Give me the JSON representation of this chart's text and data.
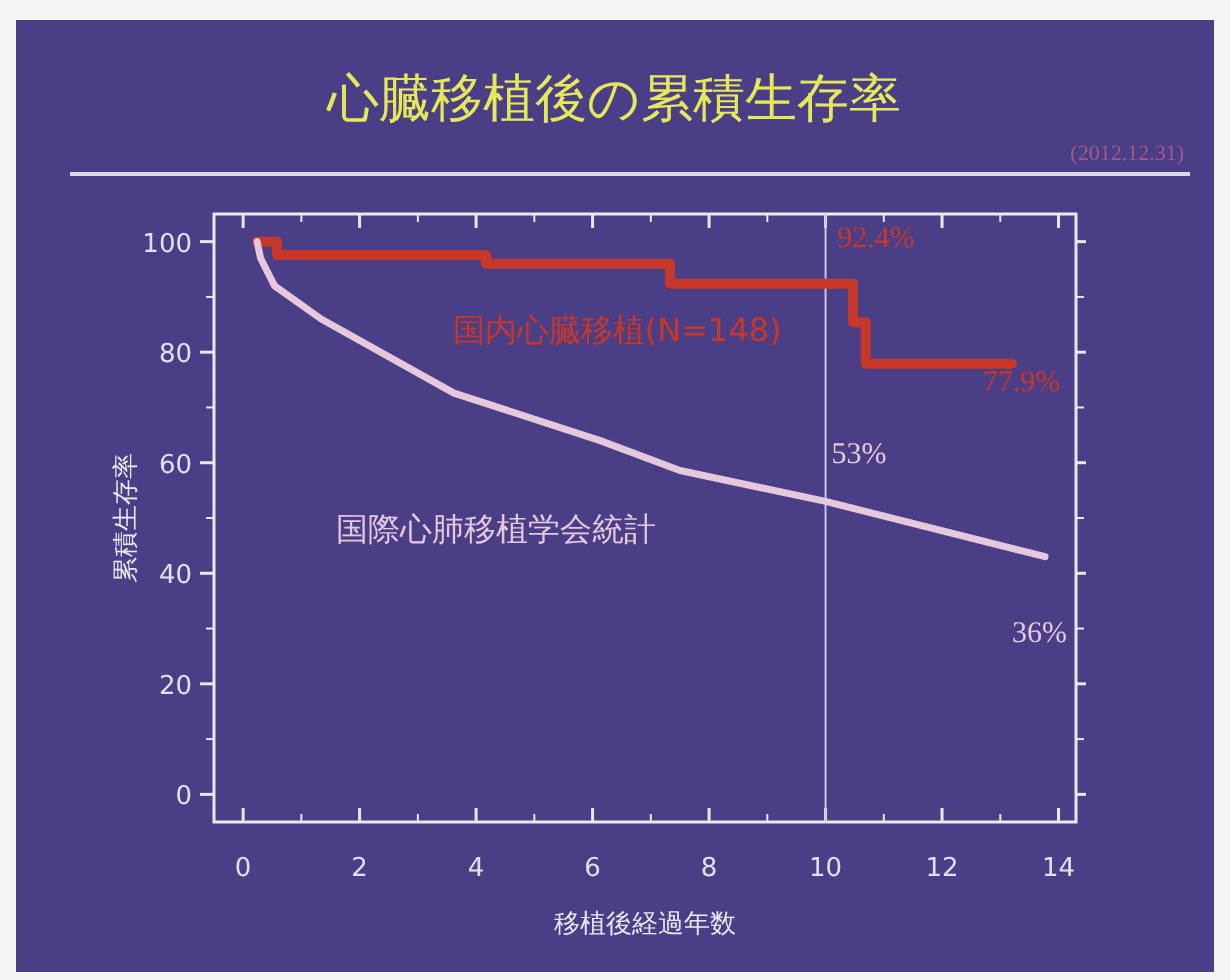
{
  "chart_data": {
    "type": "line",
    "title": "心臓移植後の累積生存率",
    "subtitle": "(2012.12.31)",
    "xlabel": "移植後経過年数",
    "ylabel": "累積生存率",
    "xlim": [
      -0.5,
      14.3
    ],
    "ylim": [
      -5,
      105
    ],
    "xticks": [
      0,
      2,
      4,
      6,
      8,
      10,
      12,
      14
    ],
    "yticks": [
      0,
      20,
      40,
      60,
      80,
      100
    ],
    "grid": false,
    "legend": false,
    "marker": "none",
    "line_style": "solid",
    "series": [
      {
        "name": "国内心臓移植(N=148)",
        "type": "step",
        "color": "#c8382a",
        "x": [
          0.24,
          0.58,
          4.17,
          7.33,
          10.47,
          10.69,
          13.2
        ],
        "values": [
          100,
          97.6,
          96,
          92.4,
          85.4,
          77.9,
          77.9
        ]
      },
      {
        "name": "国際心肺移植学会統計",
        "type": "line",
        "color": "#e6c8dc",
        "x": [
          0.24,
          0.3,
          0.54,
          1.34,
          3.62,
          6.13,
          7.5,
          10,
          13.77
        ],
        "values": [
          100,
          97,
          92,
          86,
          72.6,
          64,
          58.6,
          53,
          43
        ]
      }
    ],
    "ref_lines": [
      {
        "axis": "x",
        "value": 10,
        "color": "#c8c8e0"
      }
    ],
    "annotations": [
      "92.4%",
      "77.9%",
      "53%",
      "36%"
    ]
  }
}
